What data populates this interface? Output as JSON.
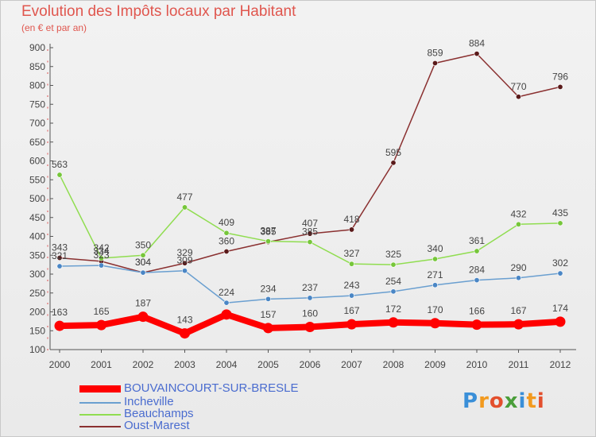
{
  "header": {
    "title": "Evolution des Impôts locaux par Habitant",
    "subtitle": "(en € et par an)"
  },
  "logo": {
    "text": "Proxiti"
  },
  "chart_data": {
    "type": "line",
    "categories": [
      "2000",
      "2001",
      "2002",
      "2003",
      "2004",
      "2005",
      "2006",
      "2007",
      "2008",
      "2009",
      "2010",
      "2011",
      "2012"
    ],
    "ylim": [
      100,
      900
    ],
    "yticks": [
      100,
      150,
      200,
      250,
      300,
      350,
      400,
      450,
      500,
      550,
      600,
      650,
      700,
      750,
      800,
      850,
      900
    ],
    "grid": false,
    "legend_position": "bottom-left",
    "series": [
      {
        "name": "BOUVAINCOURT-SUR-BRESLE",
        "color": "#ff0000",
        "marker": "#ff0000",
        "width": 8,
        "markerSize": 6.5,
        "values": [
          163,
          165,
          187,
          143,
          193,
          157,
          160,
          167,
          172,
          170,
          166,
          167,
          174
        ],
        "labels": [
          "163",
          "165",
          "187",
          "143",
          "",
          "157",
          "160",
          "167",
          "172",
          "170",
          "166",
          "167",
          "174"
        ]
      },
      {
        "name": "Incheville",
        "color": "#6a9fd0",
        "marker": "#4a86c5",
        "width": 1.5,
        "markerSize": 3.2,
        "values": [
          321,
          323,
          304,
          309,
          224,
          234,
          237,
          243,
          254,
          271,
          284,
          290,
          302
        ],
        "labels": [
          "321",
          "323",
          "304",
          "309",
          "224",
          "234",
          "237",
          "243",
          "254",
          "271",
          "284",
          "290",
          "302"
        ]
      },
      {
        "name": "Beauchamps",
        "color": "#90dd50",
        "marker": "#76c63a",
        "width": 1.5,
        "markerSize": 3.2,
        "values": [
          563,
          342,
          350,
          477,
          409,
          387,
          385,
          327,
          325,
          340,
          361,
          432,
          435
        ],
        "labels": [
          "563",
          "342",
          "350",
          "477",
          "409",
          "387",
          "385",
          "327",
          "325",
          "340",
          "361",
          "432",
          "435"
        ]
      },
      {
        "name": "Oust-Marest",
        "color": "#8a3030",
        "marker": "#5a1a1a",
        "width": 1.5,
        "markerSize": 3.2,
        "values": [
          343,
          334,
          304,
          329,
          360,
          385,
          407,
          418,
          595,
          859,
          884,
          770,
          796
        ],
        "labels": [
          "343",
          "334",
          "304",
          "329",
          "360",
          "385",
          "407",
          "418",
          "595",
          "859",
          "884",
          "770",
          "796"
        ]
      }
    ]
  }
}
